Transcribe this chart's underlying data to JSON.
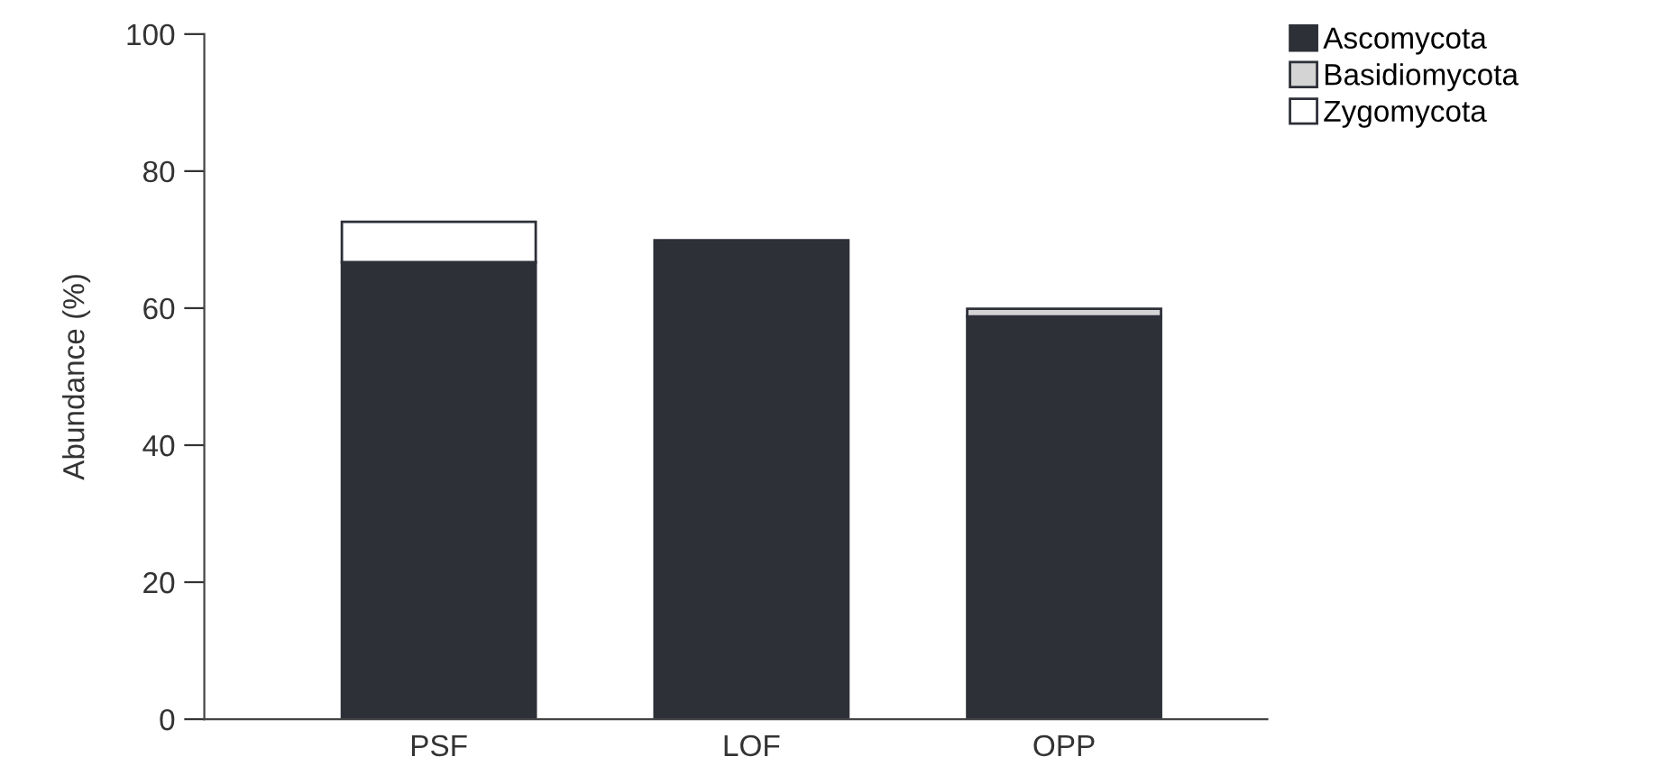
{
  "chart_data": {
    "type": "bar",
    "stacked": true,
    "ylabel": "Abundance (%)",
    "categories": [
      "PSF",
      "LOF",
      "OPP"
    ],
    "series": [
      {
        "name": "Ascomycota",
        "color": "#2e3038",
        "values": [
          66.7,
          69.9,
          58.8
        ]
      },
      {
        "name": "Basidiomycota",
        "color": "#d4d4d4",
        "values": [
          0,
          0,
          1.1
        ]
      },
      {
        "name": "Zygomycota",
        "color": "#ffffff",
        "values": [
          5.9,
          0,
          0
        ]
      }
    ],
    "ylim": [
      0,
      100
    ],
    "yticks": [
      0,
      20,
      40,
      60,
      80,
      100
    ],
    "grid": false,
    "legend": "top right"
  }
}
